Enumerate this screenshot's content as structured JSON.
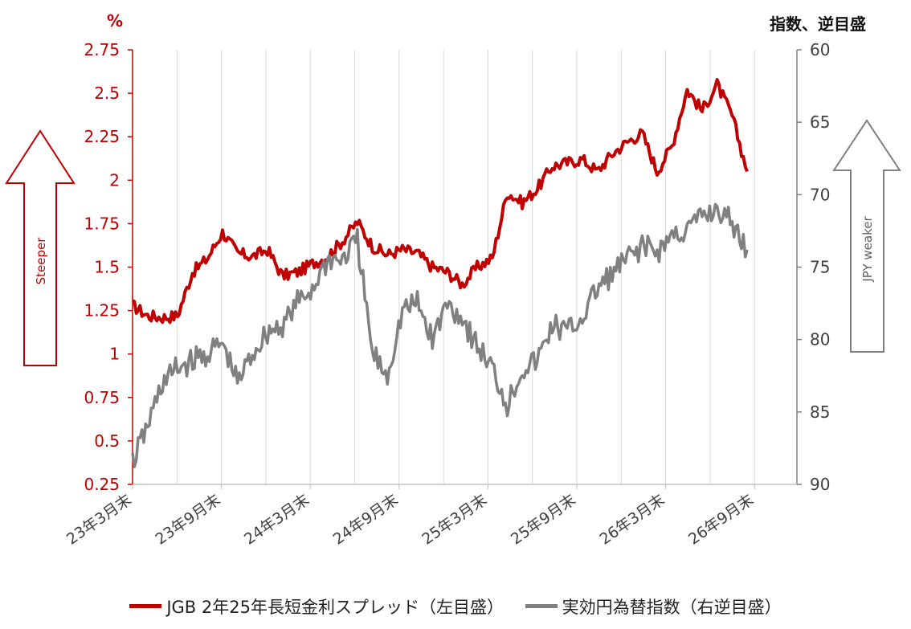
{
  "chart_data": {
    "type": "line",
    "y_left_label": "%",
    "y_right_label": "指数、逆目盛",
    "y_left_ticks": [
      "2.75",
      "2.5",
      "2.25",
      "2",
      "1.75",
      "1.5",
      "1.25",
      "1",
      "0.75",
      "0.5",
      "0.25"
    ],
    "y_right_ticks": [
      "60",
      "65",
      "70",
      "75",
      "80",
      "85",
      "90"
    ],
    "ylim_left": [
      0.25,
      2.75
    ],
    "ylim_right_inverted": [
      60,
      90
    ],
    "x_tick_labels": [
      "23年3月末",
      "23年9月末",
      "24年3月末",
      "24年9月末",
      "25年3月末",
      "25年9月末",
      "26年3月末",
      "26年9月末"
    ],
    "x": [
      "23-03",
      "23-04",
      "23-05",
      "23-06",
      "23-07",
      "23-08",
      "23-09",
      "23-10",
      "23-11",
      "23-12",
      "24-01",
      "24-02",
      "24-03",
      "24-04",
      "24-05",
      "24-06",
      "24-07",
      "24-08",
      "24-09",
      "24-10",
      "24-11",
      "24-12",
      "25-01",
      "25-02",
      "25-03",
      "25-04",
      "25-05",
      "25-06",
      "25-07",
      "25-08",
      "25-09",
      "25-10",
      "25-11",
      "25-12",
      "26-01",
      "26-02",
      "26-03",
      "26-04",
      "26-05",
      "26-06",
      "26-07",
      "26-08"
    ],
    "series": [
      {
        "name": "JGB 2年25年長短金利スプレッド（左目盛）",
        "axis": "left",
        "color": "#c00000",
        "values": [
          1.28,
          1.22,
          1.21,
          1.22,
          1.47,
          1.55,
          1.7,
          1.58,
          1.56,
          1.6,
          1.45,
          1.47,
          1.52,
          1.56,
          1.65,
          1.76,
          1.62,
          1.57,
          1.6,
          1.58,
          1.5,
          1.47,
          1.4,
          1.5,
          1.55,
          1.93,
          1.87,
          1.95,
          2.08,
          2.1,
          2.12,
          2.05,
          2.15,
          2.22,
          2.27,
          2.05,
          2.2,
          2.52,
          2.4,
          2.55,
          2.37,
          2.05
        ]
      },
      {
        "name": "実効円為替指数（右逆目盛）",
        "axis": "right",
        "color": "#808080",
        "values": [
          88.5,
          86.0,
          83.0,
          82.0,
          81.5,
          81.0,
          80.3,
          83.0,
          81.0,
          79.5,
          79.0,
          77.5,
          76.5,
          74.5,
          74.5,
          73.2,
          81.0,
          82.5,
          78.0,
          77.5,
          80.0,
          77.5,
          78.5,
          80.5,
          82.0,
          84.5,
          82.0,
          81.5,
          79.0,
          79.5,
          78.5,
          76.5,
          75.5,
          74.5,
          73.5,
          74.0,
          72.8,
          72.5,
          71.5,
          71.0,
          72.0,
          73.8
        ]
      }
    ],
    "arrows": {
      "left": "Steeper",
      "right": "JPY weaker"
    }
  }
}
